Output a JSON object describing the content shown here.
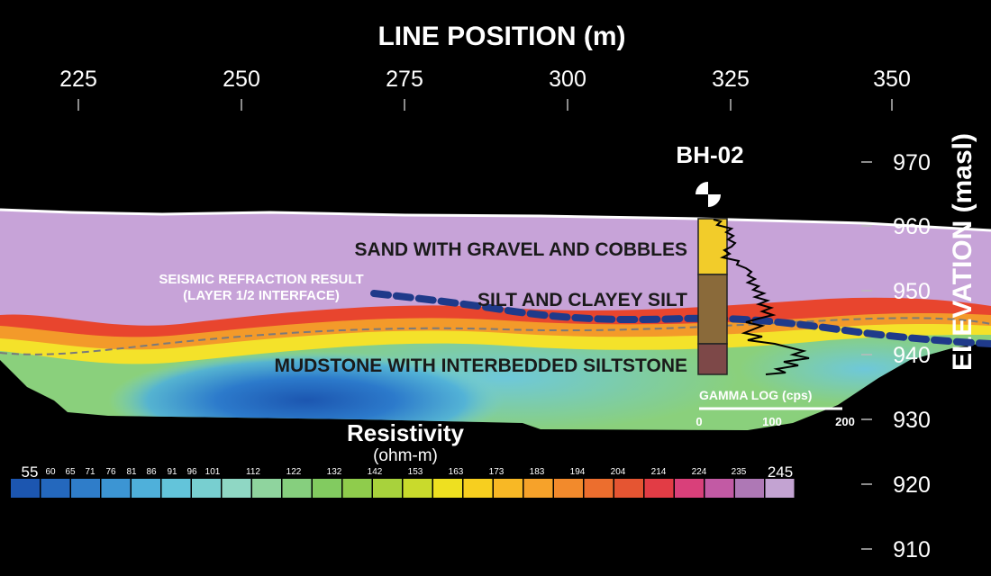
{
  "x_axis": {
    "title": "LINE POSITION (m)",
    "ticks": [
      "225",
      "250",
      "275",
      "300",
      "325",
      "350"
    ]
  },
  "y_axis": {
    "title": "ELEVATION (masl)",
    "ticks": [
      "970",
      "960",
      "950",
      "940",
      "930",
      "920",
      "910"
    ]
  },
  "units": {
    "sand": "SAND WITH GRAVEL AND COBBLES",
    "silt": "SILT AND CLAYEY SILT",
    "mudstone": "MUDSTONE WITH INTERBEDDED SILTSTONE"
  },
  "seismic": {
    "line1": "SEISMIC REFRACTION RESULT",
    "line2": "(LAYER 1/2 INTERFACE)"
  },
  "borehole": {
    "label": "BH-02",
    "log_colors": {
      "sand": "#f2cc2a",
      "silt": "#8a6a3a",
      "mudstone": "#7d4848"
    }
  },
  "gamma_log": {
    "title": "GAMMA LOG (cps)",
    "ticks": [
      "0",
      "100",
      "200"
    ]
  },
  "colorbar": {
    "title": "Resistivity",
    "unit": "(ohm-m)",
    "min_label": "55",
    "max_label": "245",
    "tick_labels": [
      "60",
      "65",
      "71",
      "76",
      "81",
      "86",
      "91",
      "96",
      "101",
      "112",
      "122",
      "132",
      "142",
      "153",
      "163",
      "173",
      "183",
      "194",
      "204",
      "214",
      "224",
      "235"
    ],
    "colors": [
      "#1c56b0",
      "#2468bd",
      "#2f7dc9",
      "#3c95d3",
      "#4fb0da",
      "#63c4da",
      "#78cfd0",
      "#8fd7c4",
      "#8fd49e",
      "#86cf7e",
      "#82cb60",
      "#8fcc4c",
      "#a8d23c",
      "#c9da2c",
      "#eee020",
      "#f7cf1f",
      "#f8b825",
      "#f6a22a",
      "#f28a2c",
      "#ec6e2e",
      "#e55532",
      "#e23c45",
      "#d9407a",
      "#c25aa4",
      "#ae78b5",
      "#c3a3d2"
    ]
  },
  "colors": {
    "background": "#000000",
    "resistive_layer": "#c7a3d8",
    "seismic_line": "#1f3a8a"
  }
}
